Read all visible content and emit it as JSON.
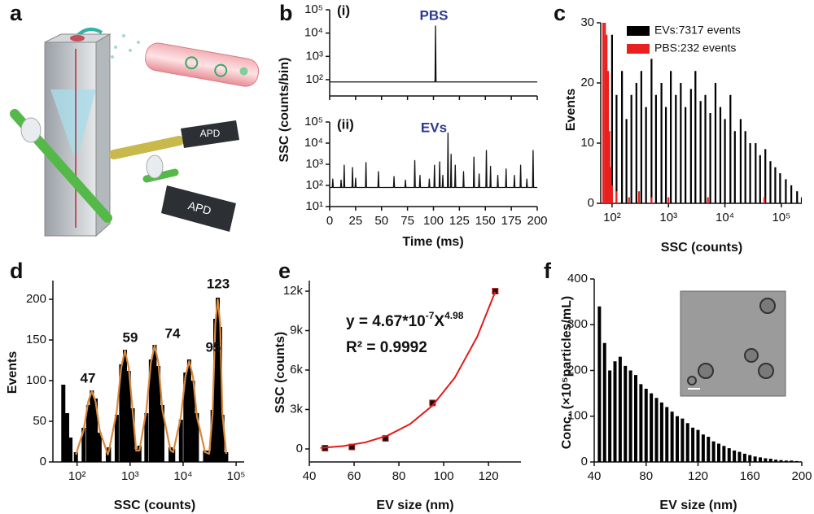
{
  "diagram": {
    "panel_label": "a",
    "apd_labels": [
      "APD",
      "APD"
    ]
  },
  "chart_data": [
    {
      "type": "line",
      "panel_label": "b",
      "xlabel": "Time (ms)",
      "ylabel": "SSC (counts/bin)",
      "xlim": [
        0,
        200
      ],
      "xticks": [
        0,
        25,
        50,
        75,
        100,
        125,
        150,
        175,
        200
      ],
      "ylog": true,
      "subplots": [
        {
          "label": "(i)",
          "annotation": "PBS",
          "annotation_color": "#2c3a8f",
          "ylim": [
            20,
            100000
          ],
          "yticks": [
            {
              "value": 100,
              "label": "10²"
            },
            {
              "value": 1000,
              "label": "10³"
            },
            {
              "value": 10000,
              "label": "10⁴"
            },
            {
              "value": 100000,
              "label": "10⁵"
            }
          ],
          "series": [
            {
              "color": "#111111",
              "x": [
                0,
                50,
                101.5,
                102,
                102.5,
                150,
                200
              ],
              "values": [
                80,
                80,
                80,
                20000,
                80,
                80,
                80
              ]
            }
          ]
        },
        {
          "label": "(ii)",
          "annotation": "EVs",
          "annotation_color": "#2c3a8f",
          "ylim": [
            10,
            100000
          ],
          "yticks": [
            {
              "value": 10,
              "label": "10¹"
            },
            {
              "value": 100,
              "label": "10²"
            },
            {
              "value": 1000,
              "label": "10³"
            },
            {
              "value": 10000,
              "label": "10⁴"
            },
            {
              "value": 100000,
              "label": "10⁵"
            }
          ],
          "series": [
            {
              "color": "#111111",
              "x": [
                0,
                2.5,
                3,
                3.5,
                10.5,
                11,
                11.5,
                13.5,
                14,
                14.5,
                21.5,
                22,
                22.5,
                24.5,
                25,
                25.5,
                34.5,
                35,
                35.5,
                46.5,
                47,
                47.5,
                61.5,
                62,
                62.5,
                72.5,
                73,
                73.5,
                81.5,
                82,
                82.5,
                86.5,
                87,
                87.5,
                95.5,
                96,
                96.5,
                100.5,
                101,
                101.5,
                105.5,
                106,
                106.5,
                108.5,
                109,
                109.5,
                113.5,
                114,
                114.5,
                116.5,
                117,
                117.5,
                120.5,
                121,
                121.5,
                128.5,
                129,
                129.5,
                138.5,
                139,
                139.5,
                143.5,
                144,
                144.5,
                150.5,
                151,
                151.5,
                154.5,
                155,
                155.5,
                161.5,
                162,
                162.5,
                169.5,
                170,
                170.5,
                177.5,
                178,
                178.5,
                183.5,
                184,
                184.5,
                189.5,
                190,
                190.5,
                195.5,
                196,
                196.5,
                200
              ],
              "values": [
                80,
                80,
                200,
                80,
                80,
                180,
                80,
                80,
                900,
                80,
                80,
                700,
                80,
                80,
                220,
                80,
                80,
                1200,
                80,
                80,
                450,
                80,
                80,
                260,
                80,
                80,
                180,
                80,
                80,
                1500,
                80,
                80,
                300,
                80,
                80,
                200,
                80,
                80,
                900,
                80,
                80,
                1300,
                80,
                80,
                300,
                80,
                80,
                30000,
                80,
                80,
                3000,
                80,
                80,
                900,
                80,
                80,
                450,
                80,
                80,
                2200,
                80,
                80,
                350,
                80,
                80,
                4500,
                80,
                80,
                800,
                80,
                80,
                300,
                80,
                80,
                600,
                80,
                80,
                300,
                80,
                80,
                900,
                80,
                80,
                200,
                80,
                80,
                4500,
                80,
                80
              ]
            }
          ]
        }
      ]
    },
    {
      "type": "bar",
      "panel_label": "c",
      "xlabel": "SSC (counts)",
      "ylabel": "Events",
      "xlog": true,
      "xlim": [
        63,
        230000
      ],
      "xticks": [
        {
          "value": 100,
          "label": "10²"
        },
        {
          "value": 1000,
          "label": "10³"
        },
        {
          "value": 10000,
          "label": "10⁴"
        },
        {
          "value": 100000,
          "label": "10⁵"
        }
      ],
      "ylim": [
        0,
        30
      ],
      "yticks": [
        0,
        10,
        20,
        30
      ],
      "legend": "upper right",
      "series": [
        {
          "name": "EVs:7317 events",
          "color": "#000000",
          "x": [
            80,
            100,
            120,
            150,
            180,
            220,
            270,
            330,
            400,
            500,
            600,
            750,
            900,
            1100,
            1350,
            1650,
            2000,
            2500,
            3000,
            3700,
            4500,
            5500,
            6800,
            8300,
            10000,
            12500,
            15000,
            19000,
            23000,
            28000,
            35000,
            42000,
            52000,
            64000,
            78000,
            95000,
            120000,
            150000,
            190000,
            230000
          ],
          "values": [
            15,
            28,
            18,
            22,
            14,
            18,
            20,
            22,
            16,
            24,
            18,
            20,
            16,
            22,
            18,
            20,
            16,
            19,
            22,
            17,
            18,
            15,
            20,
            16,
            14,
            18,
            12,
            14,
            12,
            10,
            10,
            8,
            9,
            7,
            6,
            5,
            4,
            3,
            2,
            1
          ]
        },
        {
          "name": "PBS:232 events",
          "color": "#e8201f",
          "x": [
            70,
            75,
            80,
            85,
            90,
            95,
            100,
            120,
            200,
            300,
            500,
            1000,
            5000,
            50000
          ],
          "values": [
            30,
            30,
            28,
            22,
            12,
            6,
            3,
            2,
            1,
            2,
            1,
            1,
            1,
            1
          ]
        }
      ]
    },
    {
      "type": "bar",
      "panel_label": "d",
      "xlabel": "SSC (counts)",
      "ylabel": "Events",
      "xlog": true,
      "xlim": [
        35,
        142000
      ],
      "xticks": [
        {
          "value": 100,
          "label": "10²"
        },
        {
          "value": 1000,
          "label": "10³"
        },
        {
          "value": 10000,
          "label": "10⁴"
        },
        {
          "value": 100000,
          "label": "10⁵"
        }
      ],
      "ylim": [
        0,
        223
      ],
      "yticks": [
        0,
        50,
        100,
        150,
        200
      ],
      "annotations": [
        "47",
        "59",
        "74",
        "95",
        "123"
      ],
      "series": [
        {
          "color": "#000000",
          "x": [
            55,
            65,
            75,
            95,
            133,
            162,
            190,
            224,
            266,
            380,
            400,
            560,
            680,
            800,
            944,
            1120,
            1300,
            1500,
            2030,
            2465,
            2900,
            3420,
            4060,
            5800,
            6500,
            9100,
            11050,
            13000,
            15340,
            18200,
            26000,
            31000,
            36000,
            40500,
            45000,
            50000,
            55000,
            65000
          ],
          "values": [
            95,
            60,
            30,
            12,
            42,
            70,
            88,
            78,
            36,
            14,
            18,
            58,
            120,
            138,
            112,
            66,
            16,
            20,
            60,
            126,
            144,
            118,
            70,
            18,
            16,
            52,
            110,
            126,
            100,
            60,
            14,
            14,
            64,
            176,
            202,
            166,
            58,
            12
          ]
        },
        {
          "mark": "line",
          "color": "#d9883a",
          "x": [
            95,
            133,
            162,
            190,
            224,
            266,
            380,
            400,
            560,
            680,
            800,
            944,
            1120,
            1300,
            1500,
            2030,
            2465,
            2900,
            3420,
            4060,
            5800,
            6500,
            9100,
            11050,
            13000,
            15340,
            18200,
            26000,
            31000,
            36000,
            40500,
            45000,
            50000,
            55000,
            65000
          ],
          "values": [
            9,
            39,
            74,
            87,
            74,
            39,
            9,
            14,
            62,
            116,
            137,
            116,
            62,
            14,
            14,
            64,
            122,
            143,
            122,
            64,
            14,
            12,
            56,
            105,
            124,
            105,
            56,
            12,
            10,
            60,
            170,
            200,
            170,
            60,
            10
          ]
        }
      ]
    },
    {
      "type": "scatter",
      "panel_label": "e",
      "xlabel": "EV size (nm)",
      "ylabel": "SSC (counts)",
      "xlim": [
        40,
        134.5
      ],
      "xticks": [
        40,
        60,
        80,
        100,
        120
      ],
      "ylim": [
        -990,
        12804
      ],
      "yticks": [
        0,
        {
          "value": 3000,
          "label": "3k"
        },
        {
          "value": 6000,
          "label": "6k"
        },
        {
          "value": 9000,
          "label": "9k"
        },
        {
          "value": 12000,
          "label": "12k"
        }
      ],
      "equation": [
        "y = 4.67*10",
        "-7",
        "X",
        "4.98"
      ],
      "r_squared": "R² = 0.9992",
      "series": [
        {
          "color": "#111111",
          "x": [
            47,
            59,
            74,
            95,
            123
          ],
          "values": [
            60,
            150,
            800,
            3500,
            12000
          ]
        },
        {
          "mark": "line",
          "color": "#e01b1b",
          "x": [
            45,
            55,
            65,
            75,
            85,
            95,
            105,
            115,
            123
          ],
          "values": [
            80,
            217,
            498,
            1016,
            1896,
            3297,
            5431,
            8543,
            11950
          ]
        }
      ]
    },
    {
      "type": "bar",
      "panel_label": "f",
      "xlabel": "EV size (nm)",
      "ylabel": "Conc. (×10⁵particles/mL)",
      "xlim": [
        40,
        200
      ],
      "xticks": [
        40,
        80,
        120,
        160,
        200
      ],
      "ylim": [
        0,
        400
      ],
      "yticks": [
        0,
        100,
        200,
        300,
        400
      ],
      "series": [
        {
          "color": "#000000",
          "x": [
            44,
            48,
            52,
            56,
            60,
            64,
            68,
            72,
            76,
            80,
            84,
            88,
            92,
            96,
            100,
            104,
            108,
            112,
            116,
            120,
            124,
            128,
            132,
            136,
            140,
            144,
            148,
            152,
            156,
            160,
            164,
            168,
            172,
            176,
            180,
            184,
            188,
            192,
            196,
            200
          ],
          "values": [
            340,
            260,
            200,
            220,
            230,
            210,
            200,
            190,
            170,
            160,
            150,
            140,
            130,
            120,
            110,
            100,
            95,
            85,
            75,
            70,
            60,
            55,
            45,
            40,
            35,
            30,
            25,
            22,
            18,
            15,
            12,
            10,
            8,
            7,
            5,
            4,
            3,
            3,
            2,
            1
          ]
        }
      ]
    }
  ]
}
